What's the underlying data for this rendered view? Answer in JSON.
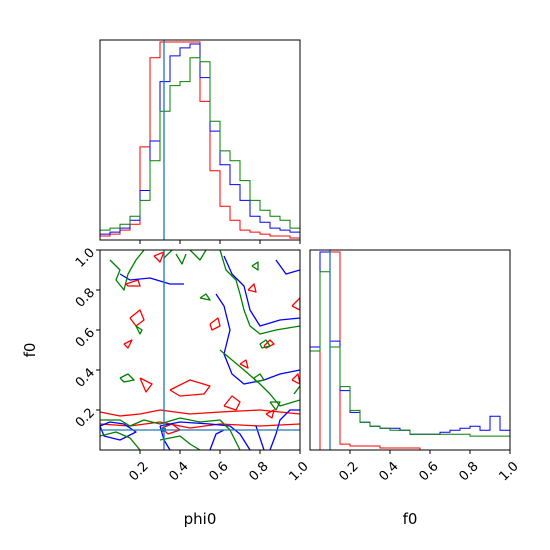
{
  "chart_data": {
    "type": "corner",
    "parameters": [
      "phi0",
      "f0"
    ],
    "xlabel": "phi0",
    "ylabel": "f0",
    "xlabel_right": "f0",
    "truth": {
      "phi0": 0.32,
      "f0": 0.1
    },
    "series_colors": {
      "red": "#ff0000",
      "blue": "#0000ff",
      "green": "#008000",
      "truth": "#1f77b4"
    },
    "ticks": {
      "phi0": [
        "0.2",
        "0.4",
        "0.6",
        "0.8",
        "1.0"
      ],
      "f0": [
        "0.2",
        "0.4",
        "0.6",
        "0.8",
        "1.0"
      ]
    },
    "axis_range": {
      "phi0": [
        0.0,
        1.0
      ],
      "f0": [
        0.0,
        1.0
      ]
    },
    "hist_phi0": {
      "bin_edges": [
        0.0,
        0.05,
        0.1,
        0.15,
        0.2,
        0.25,
        0.3,
        0.35,
        0.4,
        0.45,
        0.5,
        0.55,
        0.6,
        0.65,
        0.7,
        0.75,
        0.8,
        0.85,
        0.9,
        0.95,
        1.0
      ],
      "series": [
        {
          "color": "red",
          "values": [
            0.02,
            0.03,
            0.05,
            0.08,
            0.47,
            0.92,
            1.0,
            1.0,
            1.0,
            1.0,
            0.7,
            0.35,
            0.17,
            0.1,
            0.05,
            0.04,
            0.03,
            0.02,
            0.02,
            0.01
          ]
        },
        {
          "color": "blue",
          "values": [
            0.03,
            0.04,
            0.06,
            0.1,
            0.25,
            0.5,
            0.8,
            0.93,
            0.97,
            0.99,
            0.82,
            0.55,
            0.38,
            0.28,
            0.2,
            0.12,
            0.09,
            0.06,
            0.05,
            0.04
          ]
        },
        {
          "color": "green",
          "values": [
            0.05,
            0.06,
            0.08,
            0.12,
            0.2,
            0.4,
            0.65,
            0.78,
            0.8,
            0.92,
            0.9,
            0.6,
            0.45,
            0.4,
            0.3,
            0.2,
            0.15,
            0.12,
            0.1,
            0.06
          ]
        }
      ]
    },
    "hist_f0": {
      "bin_edges": [
        0.0,
        0.05,
        0.1,
        0.15,
        0.2,
        0.25,
        0.3,
        0.35,
        0.4,
        0.45,
        0.5,
        0.55,
        0.6,
        0.65,
        0.7,
        0.75,
        0.8,
        0.85,
        0.9,
        0.95,
        1.0
      ],
      "series": [
        {
          "color": "red",
          "values": [
            0.0,
            1.0,
            1.0,
            0.03,
            0.02,
            0.02,
            0.02,
            0.01,
            0.01,
            0.01,
            0.01,
            0.0,
            0.0,
            0.0,
            0.0,
            0.0,
            0.0,
            0.0,
            0.0,
            0.0
          ]
        },
        {
          "color": "blue",
          "values": [
            0.52,
            1.0,
            0.55,
            0.3,
            0.19,
            0.14,
            0.12,
            0.11,
            0.11,
            0.1,
            0.08,
            0.08,
            0.08,
            0.09,
            0.1,
            0.11,
            0.12,
            0.1,
            0.17,
            0.1
          ]
        },
        {
          "color": "green",
          "values": [
            0.5,
            0.9,
            0.52,
            0.32,
            0.2,
            0.14,
            0.12,
            0.11,
            0.1,
            0.1,
            0.08,
            0.08,
            0.08,
            0.08,
            0.08,
            0.08,
            0.07,
            0.07,
            0.07,
            0.07
          ]
        }
      ]
    },
    "contours": [
      {
        "color": "red",
        "paths": [
          [
            [
              0.0,
              0.19
            ],
            [
              0.1,
              0.17
            ],
            [
              0.2,
              0.18
            ],
            [
              0.3,
              0.2
            ],
            [
              0.45,
              0.18
            ],
            [
              0.6,
              0.19
            ],
            [
              0.8,
              0.2
            ],
            [
              1.0,
              0.18
            ]
          ],
          [
            [
              0.0,
              0.13
            ],
            [
              0.15,
              0.12
            ],
            [
              0.3,
              0.14
            ],
            [
              0.45,
              0.11
            ],
            [
              0.6,
              0.13
            ],
            [
              0.8,
              0.12
            ],
            [
              1.0,
              0.13
            ]
          ],
          [
            [
              0.34,
              0.08
            ],
            [
              0.4,
              0.1
            ],
            [
              0.36,
              0.13
            ],
            [
              0.31,
              0.11
            ],
            [
              0.34,
              0.08
            ]
          ],
          [
            [
              0.35,
              0.3
            ],
            [
              0.45,
              0.35
            ],
            [
              0.55,
              0.32
            ],
            [
              0.52,
              0.28
            ],
            [
              0.4,
              0.27
            ],
            [
              0.35,
              0.3
            ]
          ],
          [
            [
              0.62,
              0.22
            ],
            [
              0.66,
              0.27
            ],
            [
              0.7,
              0.24
            ],
            [
              0.68,
              0.2
            ],
            [
              0.62,
              0.22
            ]
          ],
          [
            [
              0.2,
              0.36
            ],
            [
              0.26,
              0.33
            ],
            [
              0.23,
              0.29
            ],
            [
              0.2,
              0.36
            ]
          ],
          [
            [
              0.15,
              0.66
            ],
            [
              0.2,
              0.7
            ],
            [
              0.22,
              0.65
            ],
            [
              0.18,
              0.62
            ],
            [
              0.15,
              0.66
            ]
          ],
          [
            [
              0.12,
              0.53
            ],
            [
              0.16,
              0.55
            ],
            [
              0.14,
              0.51
            ],
            [
              0.12,
              0.53
            ]
          ],
          [
            [
              0.13,
              0.83
            ],
            [
              0.19,
              0.85
            ],
            [
              0.2,
              0.82
            ],
            [
              0.14,
              0.82
            ],
            [
              0.13,
              0.83
            ]
          ],
          [
            [
              0.27,
              0.97
            ],
            [
              0.32,
              0.99
            ],
            [
              0.3,
              0.94
            ],
            [
              0.27,
              0.97
            ]
          ],
          [
            [
              0.55,
              0.63
            ],
            [
              0.59,
              0.66
            ],
            [
              0.6,
              0.62
            ],
            [
              0.56,
              0.6
            ],
            [
              0.55,
              0.63
            ]
          ],
          [
            [
              0.7,
              0.43
            ],
            [
              0.73,
              0.45
            ],
            [
              0.74,
              0.41
            ],
            [
              0.7,
              0.43
            ]
          ],
          [
            [
              0.96,
              0.35
            ],
            [
              0.99,
              0.38
            ],
            [
              1.0,
              0.33
            ],
            [
              0.96,
              0.35
            ]
          ],
          [
            [
              0.96,
              0.72
            ],
            [
              1.0,
              0.76
            ],
            [
              1.0,
              0.7
            ],
            [
              0.96,
              0.72
            ]
          ],
          [
            [
              0.74,
              0.8
            ],
            [
              0.77,
              0.83
            ],
            [
              0.78,
              0.79
            ],
            [
              0.74,
              0.8
            ]
          ],
          [
            [
              0.82,
              0.52
            ],
            [
              0.85,
              0.55
            ],
            [
              0.87,
              0.53
            ],
            [
              0.83,
              0.51
            ],
            [
              0.82,
              0.52
            ]
          ],
          [
            [
              0.83,
              0.18
            ],
            [
              0.87,
              0.2
            ],
            [
              0.86,
              0.16
            ],
            [
              0.83,
              0.18
            ]
          ]
        ]
      },
      {
        "color": "blue",
        "paths": [
          [
            [
              0.0,
              0.12
            ],
            [
              0.05,
              0.14
            ],
            [
              0.12,
              0.13
            ],
            [
              0.18,
              0.09
            ],
            [
              0.1,
              0.05
            ],
            [
              0.02,
              0.07
            ],
            [
              0.0,
              0.12
            ]
          ],
          [
            [
              0.3,
              0.12
            ],
            [
              0.4,
              0.14
            ],
            [
              0.55,
              0.13
            ],
            [
              0.65,
              0.12
            ],
            [
              0.7,
              0.08
            ],
            [
              0.75,
              0.0
            ]
          ],
          [
            [
              0.3,
              0.12
            ],
            [
              0.32,
              0.05
            ],
            [
              0.35,
              0.0
            ]
          ],
          [
            [
              0.55,
              0.0
            ],
            [
              0.58,
              0.08
            ],
            [
              0.62,
              0.1
            ]
          ],
          [
            [
              0.58,
              0.78
            ],
            [
              0.62,
              0.72
            ],
            [
              0.65,
              0.6
            ],
            [
              0.62,
              0.48
            ],
            [
              0.66,
              0.38
            ],
            [
              0.72,
              0.33
            ],
            [
              0.82,
              0.35
            ],
            [
              0.9,
              0.38
            ],
            [
              1.0,
              0.4
            ]
          ],
          [
            [
              0.62,
              0.97
            ],
            [
              0.66,
              0.88
            ],
            [
              0.72,
              0.82
            ],
            [
              0.75,
              0.7
            ],
            [
              0.8,
              0.62
            ],
            [
              0.9,
              0.65
            ],
            [
              1.0,
              0.66
            ]
          ],
          [
            [
              0.85,
              0.0
            ],
            [
              0.88,
              0.08
            ],
            [
              0.9,
              0.15
            ],
            [
              0.95,
              0.2
            ],
            [
              1.0,
              0.2
            ]
          ],
          [
            [
              0.78,
              0.12
            ],
            [
              0.8,
              0.06
            ],
            [
              0.82,
              0.0
            ]
          ],
          [
            [
              0.1,
              0.88
            ],
            [
              0.15,
              0.85
            ],
            [
              0.25,
              0.86
            ],
            [
              0.35,
              0.83
            ],
            [
              0.42,
              0.83
            ]
          ],
          [
            [
              0.88,
              0.95
            ],
            [
              0.93,
              0.88
            ],
            [
              1.0,
              0.9
            ]
          ]
        ]
      },
      {
        "color": "green",
        "paths": [
          [
            [
              0.0,
              0.15
            ],
            [
              0.1,
              0.15
            ],
            [
              0.15,
              0.12
            ],
            [
              0.22,
              0.15
            ],
            [
              0.3,
              0.13
            ],
            [
              0.4,
              0.16
            ],
            [
              0.5,
              0.14
            ],
            [
              0.6,
              0.15
            ],
            [
              0.65,
              0.1
            ],
            [
              0.7,
              0.0
            ]
          ],
          [
            [
              0.0,
              0.07
            ],
            [
              0.08,
              0.09
            ],
            [
              0.15,
              0.06
            ],
            [
              0.2,
              0.0
            ]
          ],
          [
            [
              0.3,
              0.05
            ],
            [
              0.4,
              0.07
            ],
            [
              0.45,
              0.03
            ],
            [
              0.5,
              0.0
            ]
          ],
          [
            [
              0.6,
              1.0
            ],
            [
              0.63,
              0.9
            ],
            [
              0.68,
              0.85
            ],
            [
              0.7,
              0.78
            ],
            [
              0.72,
              0.7
            ],
            [
              0.75,
              0.62
            ],
            [
              0.8,
              0.58
            ],
            [
              0.88,
              0.6
            ],
            [
              1.0,
              0.62
            ]
          ],
          [
            [
              0.6,
              0.5
            ],
            [
              0.66,
              0.45
            ],
            [
              0.72,
              0.4
            ],
            [
              0.8,
              0.33
            ],
            [
              0.85,
              0.28
            ],
            [
              0.9,
              0.22
            ],
            [
              1.0,
              0.25
            ]
          ],
          [
            [
              0.05,
              0.95
            ],
            [
              0.1,
              0.9
            ],
            [
              0.08,
              0.85
            ],
            [
              0.12,
              0.8
            ],
            [
              0.14,
              0.88
            ],
            [
              0.18,
              0.95
            ],
            [
              0.22,
              1.0
            ]
          ],
          [
            [
              0.32,
              0.96
            ],
            [
              0.36,
              1.0
            ]
          ],
          [
            [
              0.38,
              0.98
            ],
            [
              0.41,
              0.93
            ],
            [
              0.43,
              0.98
            ]
          ],
          [
            [
              0.45,
              1.0
            ],
            [
              0.5,
              0.95
            ],
            [
              0.53,
              1.0
            ]
          ],
          [
            [
              0.1,
              0.36
            ],
            [
              0.14,
              0.38
            ],
            [
              0.17,
              0.35
            ],
            [
              0.12,
              0.34
            ],
            [
              0.1,
              0.36
            ]
          ],
          [
            [
              0.5,
              0.76
            ],
            [
              0.53,
              0.78
            ],
            [
              0.55,
              0.75
            ],
            [
              0.5,
              0.76
            ]
          ],
          [
            [
              0.8,
              0.53
            ],
            [
              0.83,
              0.55
            ],
            [
              0.85,
              0.52
            ],
            [
              0.81,
              0.51
            ],
            [
              0.8,
              0.53
            ]
          ],
          [
            [
              0.77,
              0.36
            ],
            [
              0.8,
              0.38
            ],
            [
              0.82,
              0.35
            ],
            [
              0.78,
              0.34
            ],
            [
              0.77,
              0.36
            ]
          ],
          [
            [
              0.76,
              0.92
            ],
            [
              0.79,
              0.94
            ],
            [
              0.79,
              0.9
            ],
            [
              0.76,
              0.92
            ]
          ],
          [
            [
              0.97,
              0.28
            ],
            [
              1.0,
              0.32
            ]
          ],
          [
            [
              0.85,
              0.24
            ],
            [
              0.88,
              0.2
            ],
            [
              0.9,
              0.24
            ],
            [
              0.85,
              0.24
            ]
          ],
          [
            [
              0.18,
              0.62
            ],
            [
              0.21,
              0.6
            ],
            [
              0.2,
              0.58
            ],
            [
              0.18,
              0.62
            ]
          ]
        ]
      }
    ]
  }
}
